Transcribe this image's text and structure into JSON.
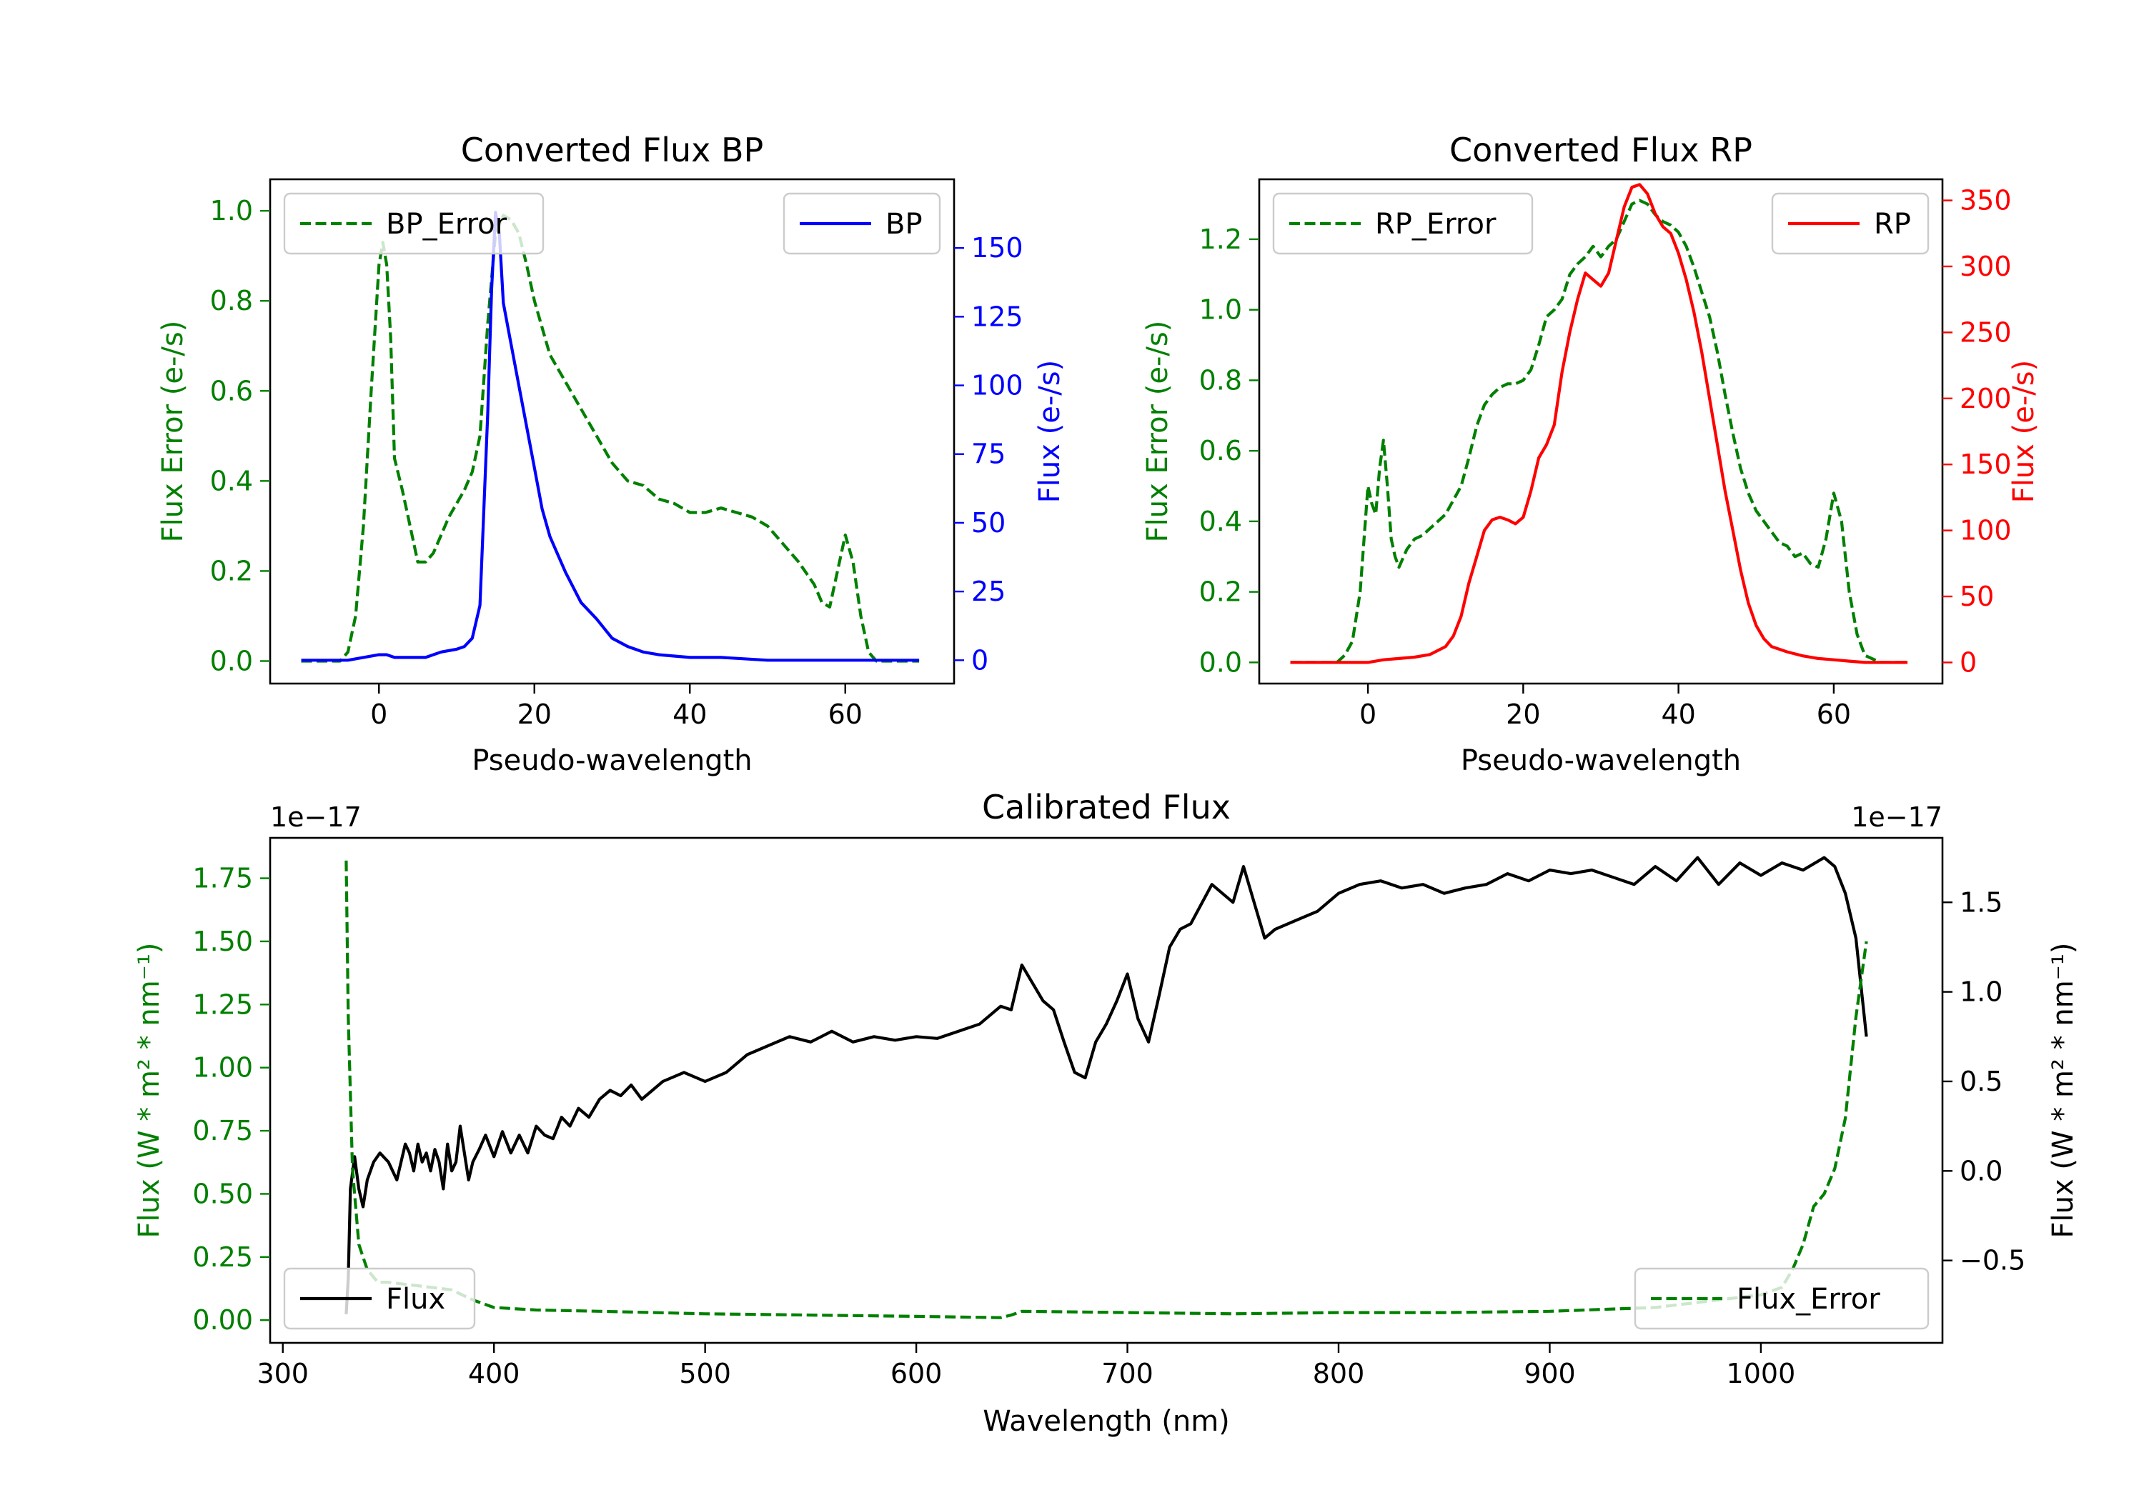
{
  "chart_data": [
    {
      "type": "line",
      "title": "Converted Flux BP",
      "xlabel": "Pseudo-wavelength",
      "ylabel_left": "Flux Error (e-/s)",
      "ylabel_right": "Flux (e-/s)",
      "xlim": [
        -14,
        74
      ],
      "ylim_left": [
        -0.05,
        1.07
      ],
      "ylim_right": [
        -8.5,
        175
      ],
      "xticks": [
        0,
        20,
        40,
        60
      ],
      "yticks_left": [
        0.0,
        0.2,
        0.4,
        0.6,
        0.8,
        1.0
      ],
      "yticks_left_labels": [
        "0.0",
        "0.2",
        "0.4",
        "0.6",
        "0.8",
        "1.0"
      ],
      "yticks_right": [
        0,
        25,
        50,
        75,
        100,
        125,
        150
      ],
      "series": [
        {
          "name": "BP_Error",
          "axis": "left",
          "color": "#008000",
          "style": "dashed",
          "x": [
            -10,
            -5,
            -4,
            -3,
            -2,
            -1,
            0,
            0.5,
            1,
            1.5,
            2,
            3,
            4,
            5,
            6,
            7,
            8,
            9,
            10,
            11,
            12,
            13,
            14,
            15,
            16,
            17,
            18,
            19,
            20,
            22,
            24,
            26,
            28,
            30,
            32,
            34,
            36,
            38,
            40,
            42,
            44,
            46,
            48,
            50,
            52,
            54,
            56,
            57,
            58,
            59,
            60,
            61,
            62,
            63,
            64,
            66,
            68,
            69.5
          ],
          "y": [
            0.0,
            0.0,
            0.02,
            0.1,
            0.3,
            0.6,
            0.88,
            0.93,
            0.88,
            0.72,
            0.45,
            0.38,
            0.3,
            0.22,
            0.22,
            0.24,
            0.28,
            0.32,
            0.35,
            0.38,
            0.42,
            0.5,
            0.75,
            0.95,
            0.99,
            0.98,
            0.95,
            0.88,
            0.8,
            0.68,
            0.62,
            0.56,
            0.5,
            0.44,
            0.4,
            0.39,
            0.36,
            0.35,
            0.33,
            0.33,
            0.34,
            0.33,
            0.32,
            0.3,
            0.26,
            0.22,
            0.17,
            0.13,
            0.12,
            0.2,
            0.28,
            0.22,
            0.1,
            0.02,
            0.0,
            0.0,
            0.0,
            0.0
          ]
        },
        {
          "name": "BP",
          "axis": "right",
          "color": "#0000ff",
          "style": "solid",
          "x": [
            -10,
            -4,
            -2,
            0,
            1,
            2,
            4,
            6,
            8,
            10,
            11,
            12,
            13,
            14,
            14.5,
            15,
            15.5,
            16,
            17,
            18,
            19,
            20,
            21,
            22,
            24,
            26,
            27,
            28,
            30,
            32,
            34,
            36,
            40,
            44,
            50,
            56,
            60,
            64,
            69.5
          ],
          "y": [
            0,
            0,
            1,
            2,
            2,
            1,
            1,
            1,
            3,
            4,
            5,
            8,
            20,
            90,
            135,
            163,
            155,
            130,
            115,
            100,
            85,
            70,
            55,
            45,
            32,
            21,
            18,
            15,
            8,
            5,
            3,
            2,
            1,
            1,
            0,
            0,
            0,
            0,
            0
          ]
        }
      ],
      "legend": [
        {
          "label": "BP_Error",
          "placement": "upper-left"
        },
        {
          "label": "BP",
          "placement": "upper-right"
        }
      ]
    },
    {
      "type": "line",
      "title": "Converted Flux RP",
      "xlabel": "Pseudo-wavelength",
      "ylabel_left": "Flux Error (e-/s)",
      "ylabel_right": "Flux (e-/s)",
      "xlim": [
        -14,
        74
      ],
      "ylim_left": [
        -0.06,
        1.37
      ],
      "ylim_right": [
        -16,
        366
      ],
      "xticks": [
        0,
        20,
        40,
        60
      ],
      "yticks_left": [
        0.0,
        0.2,
        0.4,
        0.6,
        0.8,
        1.0,
        1.2
      ],
      "yticks_left_labels": [
        "0.0",
        "0.2",
        "0.4",
        "0.6",
        "0.8",
        "1.0",
        "1.2"
      ],
      "yticks_right": [
        0,
        50,
        100,
        150,
        200,
        250,
        300,
        350
      ],
      "series": [
        {
          "name": "RP_Error",
          "axis": "left",
          "color": "#008000",
          "style": "dashed",
          "x": [
            -10,
            -4,
            -3,
            -2,
            -1,
            0,
            0.5,
            1,
            1.5,
            2,
            2.5,
            3,
            3.5,
            4,
            5,
            6,
            7,
            8,
            9,
            10,
            12,
            13,
            14,
            15,
            16,
            17,
            18,
            19,
            20,
            21,
            22,
            23,
            24,
            25,
            26,
            27,
            28,
            29,
            30,
            31,
            32,
            33,
            34,
            35,
            36,
            37,
            38,
            39,
            40,
            41,
            42,
            43,
            44,
            45,
            46,
            47,
            48,
            49,
            50,
            51,
            52,
            53,
            54,
            55,
            56,
            57,
            58,
            59,
            60,
            61,
            62,
            63,
            64,
            66,
            68,
            69.5
          ],
          "y": [
            0.0,
            0.0,
            0.02,
            0.06,
            0.2,
            0.5,
            0.45,
            0.42,
            0.55,
            0.63,
            0.5,
            0.35,
            0.3,
            0.27,
            0.32,
            0.35,
            0.36,
            0.38,
            0.4,
            0.42,
            0.5,
            0.58,
            0.67,
            0.73,
            0.76,
            0.78,
            0.79,
            0.79,
            0.8,
            0.83,
            0.9,
            0.98,
            1.0,
            1.03,
            1.1,
            1.13,
            1.15,
            1.18,
            1.15,
            1.18,
            1.2,
            1.25,
            1.3,
            1.31,
            1.3,
            1.27,
            1.25,
            1.24,
            1.22,
            1.18,
            1.12,
            1.05,
            0.98,
            0.88,
            0.76,
            0.65,
            0.55,
            0.48,
            0.43,
            0.4,
            0.37,
            0.34,
            0.33,
            0.3,
            0.31,
            0.28,
            0.27,
            0.35,
            0.48,
            0.4,
            0.2,
            0.08,
            0.02,
            0.0,
            0.0,
            0.0
          ]
        },
        {
          "name": "RP",
          "axis": "right",
          "color": "#ff0000",
          "style": "solid",
          "x": [
            -10,
            -4,
            0,
            2,
            4,
            6,
            8,
            10,
            11,
            12,
            13,
            14,
            15,
            16,
            17,
            18,
            19,
            20,
            21,
            22,
            23,
            24,
            25,
            26,
            27,
            28,
            29,
            30,
            31,
            32,
            33,
            34,
            35,
            36,
            37,
            38,
            39,
            40,
            41,
            42,
            43,
            44,
            45,
            46,
            47,
            48,
            49,
            50,
            51,
            52,
            54,
            56,
            58,
            60,
            62,
            64,
            66,
            69.5
          ],
          "y": [
            0,
            0,
            0,
            2,
            3,
            4,
            6,
            12,
            20,
            35,
            60,
            80,
            100,
            108,
            110,
            108,
            105,
            110,
            130,
            155,
            165,
            180,
            220,
            250,
            275,
            295,
            290,
            285,
            295,
            320,
            345,
            360,
            362,
            355,
            340,
            330,
            325,
            310,
            290,
            265,
            235,
            200,
            165,
            130,
            100,
            70,
            45,
            28,
            18,
            12,
            8,
            5,
            3,
            2,
            1,
            0,
            0,
            0
          ]
        }
      ],
      "legend": [
        {
          "label": "RP_Error",
          "placement": "upper-left"
        },
        {
          "label": "RP",
          "placement": "upper-right"
        }
      ]
    },
    {
      "type": "line",
      "title": "Calibrated Flux",
      "xlabel": "Wavelength (nm)",
      "ylabel_left": "Flux (W * m² * nm⁻¹)",
      "ylabel_right": "Flux (W * m² * nm⁻¹)",
      "offset_label_left": "1e−17",
      "offset_label_right": "1e−17",
      "xlim": [
        294,
        1086
      ],
      "ylim_left": [
        -0.09,
        1.91
      ],
      "ylim_right": [
        -0.96,
        1.86
      ],
      "xticks": [
        300,
        400,
        500,
        600,
        700,
        800,
        900,
        1000
      ],
      "yticks_left": [
        0.0,
        0.25,
        0.5,
        0.75,
        1.0,
        1.25,
        1.5,
        1.75
      ],
      "yticks_left_labels": [
        "0.00",
        "0.25",
        "0.50",
        "0.75",
        "1.00",
        "1.25",
        "1.50",
        "1.75"
      ],
      "yticks_right": [
        -0.5,
        0.0,
        0.5,
        1.0,
        1.5
      ],
      "yticks_right_labels": [
        "−0.5",
        "0.0",
        "0.5",
        "1.0",
        "1.5"
      ],
      "series": [
        {
          "name": "Flux",
          "axis": "right",
          "color": "#000000",
          "style": "solid",
          "x": [
            330,
            331,
            332,
            334,
            336,
            338,
            340,
            343,
            346,
            350,
            354,
            358,
            360,
            362,
            364,
            366,
            368,
            370,
            372,
            374,
            376,
            378,
            380,
            382,
            384,
            386,
            388,
            390,
            393,
            396,
            400,
            404,
            408,
            412,
            416,
            420,
            424,
            428,
            432,
            436,
            440,
            445,
            450,
            455,
            460,
            465,
            470,
            475,
            480,
            490,
            500,
            510,
            520,
            530,
            540,
            550,
            560,
            570,
            580,
            590,
            600,
            610,
            620,
            630,
            640,
            645,
            650,
            655,
            660,
            665,
            670,
            675,
            680,
            685,
            690,
            695,
            700,
            705,
            710,
            715,
            720,
            725,
            730,
            740,
            750,
            755,
            760,
            765,
            770,
            780,
            790,
            800,
            810,
            820,
            830,
            840,
            850,
            860,
            870,
            880,
            890,
            900,
            910,
            920,
            930,
            940,
            950,
            960,
            970,
            980,
            990,
            1000,
            1010,
            1020,
            1030,
            1035,
            1040,
            1045,
            1050
          ],
          "y": [
            -0.8,
            -0.6,
            -0.1,
            0.08,
            -0.1,
            -0.2,
            -0.05,
            0.05,
            0.1,
            0.05,
            -0.05,
            0.15,
            0.1,
            0.0,
            0.15,
            0.05,
            0.1,
            0.0,
            0.12,
            0.05,
            -0.1,
            0.15,
            0.0,
            0.05,
            0.25,
            0.1,
            -0.05,
            0.05,
            0.12,
            0.2,
            0.08,
            0.22,
            0.1,
            0.2,
            0.1,
            0.25,
            0.2,
            0.18,
            0.3,
            0.25,
            0.35,
            0.3,
            0.4,
            0.45,
            0.42,
            0.48,
            0.4,
            0.45,
            0.5,
            0.55,
            0.5,
            0.55,
            0.65,
            0.7,
            0.75,
            0.72,
            0.78,
            0.72,
            0.75,
            0.73,
            0.75,
            0.74,
            0.78,
            0.82,
            0.92,
            0.9,
            1.15,
            1.05,
            0.95,
            0.9,
            0.72,
            0.55,
            0.52,
            0.72,
            0.82,
            0.95,
            1.1,
            0.85,
            0.72,
            0.98,
            1.25,
            1.35,
            1.38,
            1.6,
            1.5,
            1.7,
            1.5,
            1.3,
            1.35,
            1.4,
            1.45,
            1.55,
            1.6,
            1.62,
            1.58,
            1.6,
            1.55,
            1.58,
            1.6,
            1.66,
            1.62,
            1.68,
            1.66,
            1.68,
            1.64,
            1.6,
            1.7,
            1.62,
            1.75,
            1.6,
            1.72,
            1.65,
            1.72,
            1.68,
            1.75,
            1.7,
            1.55,
            1.3,
            0.75
          ]
        },
        {
          "name": "Flux_Error",
          "axis": "left",
          "color": "#008000",
          "style": "dashed",
          "x": [
            330,
            331,
            333,
            336,
            340,
            345,
            350,
            360,
            370,
            380,
            390,
            400,
            420,
            450,
            500,
            550,
            600,
            640,
            645,
            650,
            700,
            750,
            800,
            850,
            900,
            950,
            980,
            1000,
            1010,
            1015,
            1020,
            1025,
            1030,
            1035,
            1040,
            1045,
            1050
          ],
          "y": [
            1.82,
            1.2,
            0.6,
            0.3,
            0.2,
            0.15,
            0.15,
            0.14,
            0.13,
            0.12,
            0.08,
            0.05,
            0.04,
            0.035,
            0.025,
            0.02,
            0.015,
            0.01,
            0.02,
            0.035,
            0.03,
            0.025,
            0.03,
            0.03,
            0.035,
            0.05,
            0.08,
            0.1,
            0.13,
            0.2,
            0.3,
            0.45,
            0.5,
            0.6,
            0.8,
            1.2,
            1.5
          ]
        }
      ],
      "legend": [
        {
          "label": "Flux",
          "placement": "lower-left"
        },
        {
          "label": "Flux_Error",
          "placement": "lower-right"
        }
      ]
    }
  ]
}
